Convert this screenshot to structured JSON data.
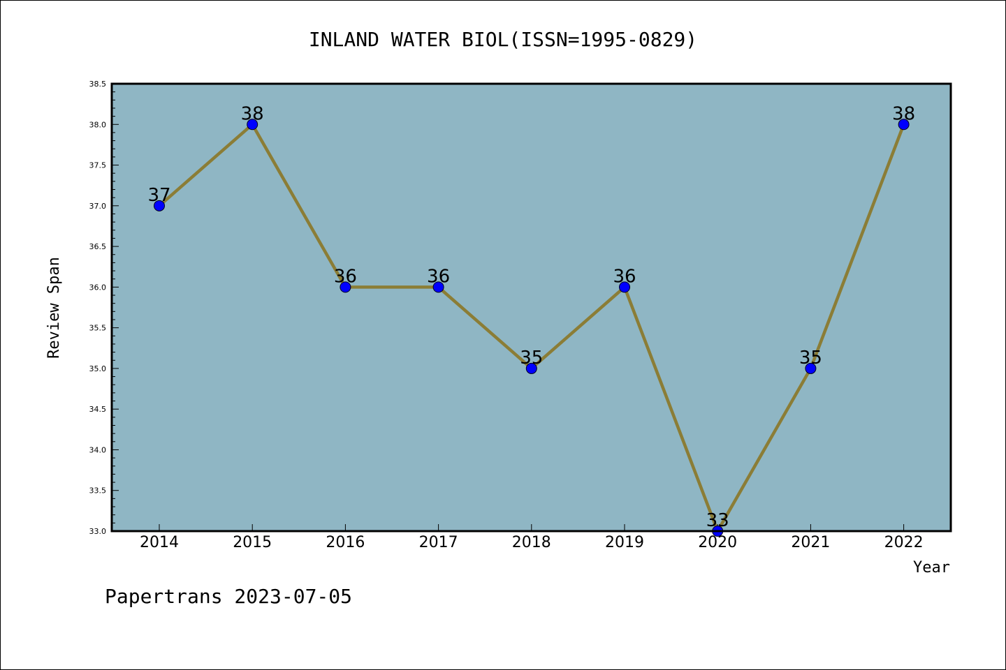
{
  "chart_data": {
    "type": "line",
    "title": "INLAND WATER BIOL(ISSN=1995-0829)",
    "xlabel": "Year",
    "ylabel": "Review Span",
    "categories": [
      "2014",
      "2015",
      "2016",
      "2017",
      "2018",
      "2019",
      "2020",
      "2021",
      "2022"
    ],
    "values": [
      37,
      38,
      36,
      36,
      35,
      36,
      33,
      35,
      38
    ],
    "data_labels": [
      "37",
      "38",
      "36",
      "36",
      "35",
      "36",
      "33",
      "35",
      "38"
    ],
    "ylim": [
      33.0,
      38.5
    ],
    "yticks": [
      "33.0",
      "33.5",
      "34.0",
      "34.5",
      "35.0",
      "35.5",
      "36.0",
      "36.5",
      "37.0",
      "37.5",
      "38.0",
      "38.5"
    ],
    "grid": false,
    "legend": "none",
    "colors": {
      "plot_background": "#8fb6c4",
      "line": "#8b7d36",
      "marker": "#0000ff"
    }
  },
  "footer": "Papertrans 2023-07-05"
}
